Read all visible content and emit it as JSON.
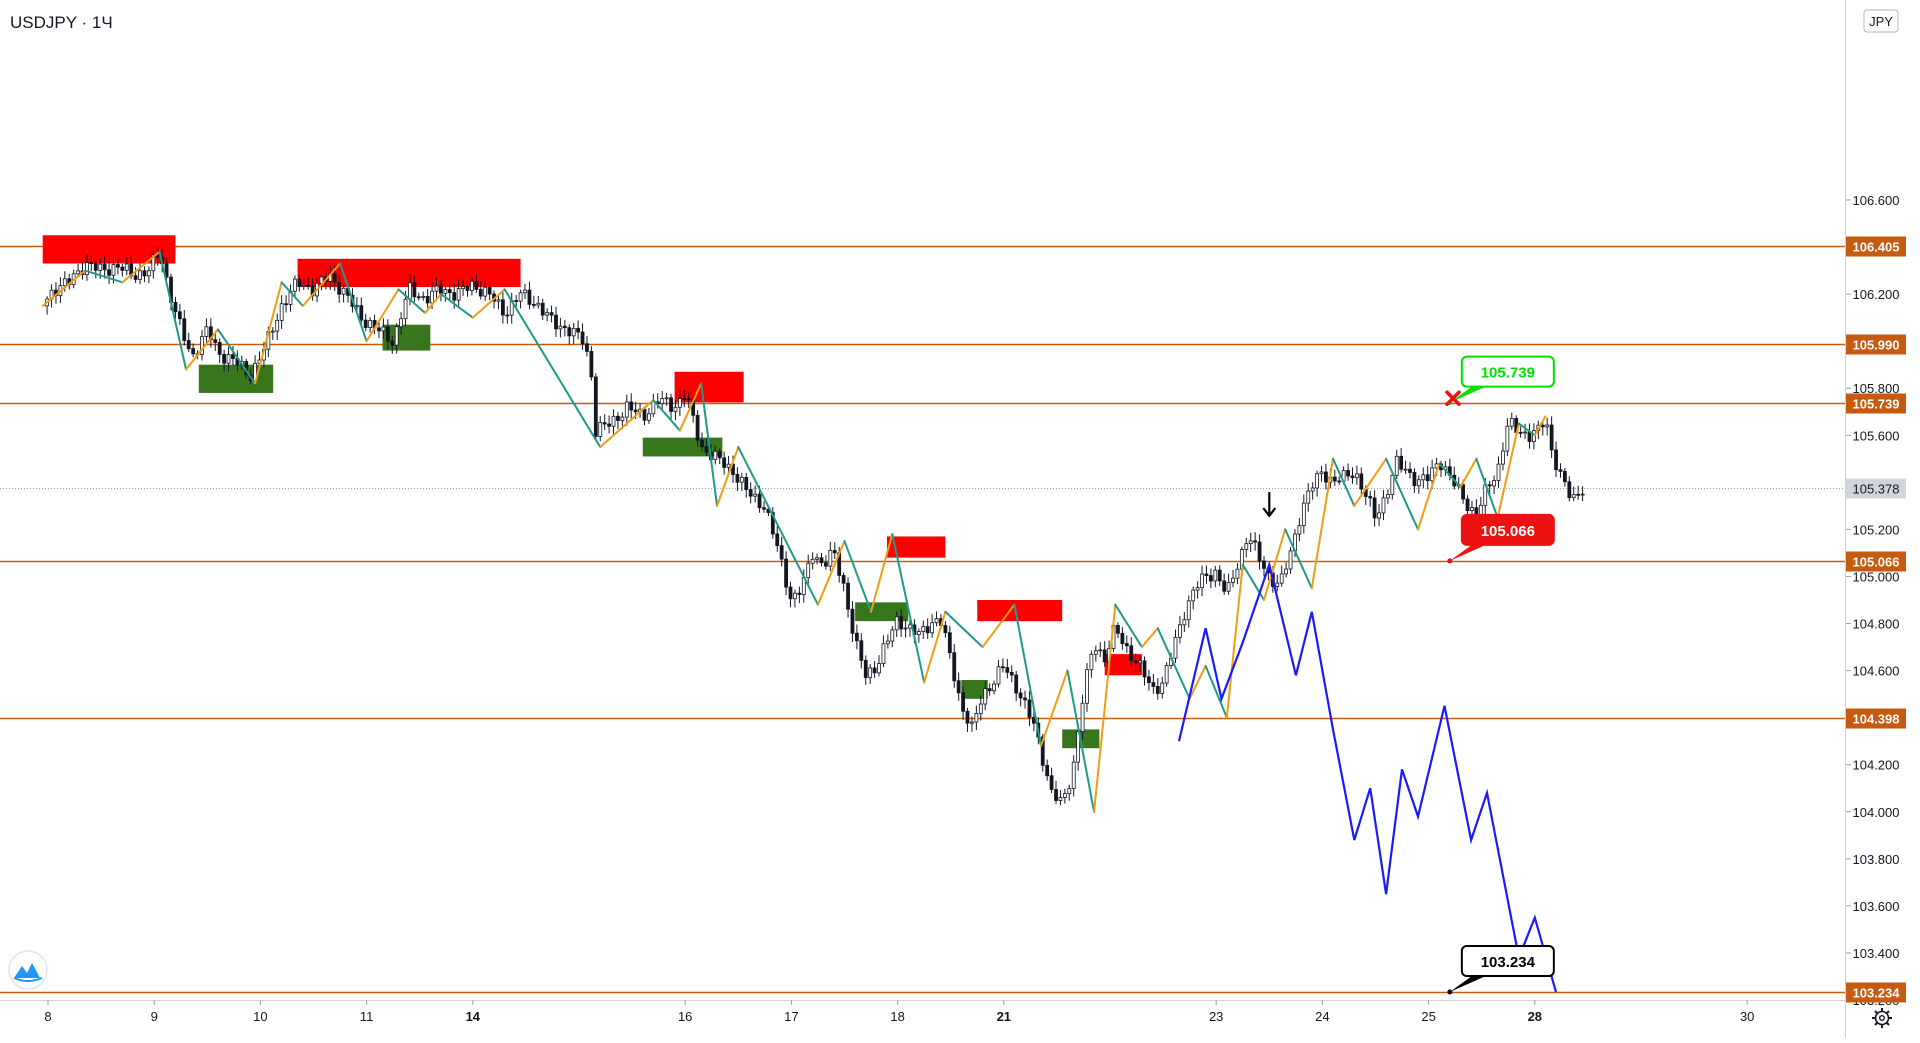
{
  "symbol_title": "USDJPY · 1Ч",
  "currency_label": "JPY",
  "colors": {
    "level_line": "#c55a11",
    "supply_zone": "#ff0000",
    "demand_zone": "#38761d",
    "zigzag_up": "#f39c12",
    "zigzag_down": "#1e9a8a",
    "projection": "#1a1aff",
    "candle": "#131722",
    "target_green": "#00e000",
    "target_red": "#ee1111",
    "target_black": "#000000"
  },
  "chart_data": {
    "type": "candlestick",
    "ylim": [
      103.2,
      106.6
    ],
    "y_ticks": [
      "106.600",
      "106.200",
      "105.800",
      "105.600",
      "105.200",
      "105.000",
      "104.800",
      "104.600",
      "104.200",
      "104.000",
      "103.800",
      "103.600",
      "103.400",
      "103.200"
    ],
    "x_ticks": [
      {
        "label": "8",
        "day": 0,
        "bold": false
      },
      {
        "label": "9",
        "day": 1,
        "bold": false
      },
      {
        "label": "10",
        "day": 2,
        "bold": false
      },
      {
        "label": "11",
        "day": 3,
        "bold": false
      },
      {
        "label": "14",
        "day": 4,
        "bold": true
      },
      {
        "label": "16",
        "day": 6,
        "bold": false
      },
      {
        "label": "17",
        "day": 7,
        "bold": false
      },
      {
        "label": "18",
        "day": 8,
        "bold": false
      },
      {
        "label": "21",
        "day": 9,
        "bold": true
      },
      {
        "label": "23",
        "day": 11,
        "bold": false
      },
      {
        "label": "24",
        "day": 12,
        "bold": false
      },
      {
        "label": "25",
        "day": 13,
        "bold": false
      },
      {
        "label": "28",
        "day": 14,
        "bold": true
      },
      {
        "label": "30",
        "day": 16,
        "bold": false
      }
    ],
    "levels": [
      "106.405",
      "105.990",
      "105.739",
      "105.066",
      "104.398",
      "103.234"
    ],
    "last_price": "105.378",
    "price_path": [
      [
        -0.05,
        106.15
      ],
      [
        0.05,
        106.22
      ],
      [
        0.2,
        106.25
      ],
      [
        0.35,
        106.33
      ],
      [
        0.5,
        106.3
      ],
      [
        0.65,
        106.32
      ],
      [
        0.8,
        106.28
      ],
      [
        0.95,
        106.3
      ],
      [
        1.05,
        106.38
      ],
      [
        1.2,
        106.12
      ],
      [
        1.35,
        105.93
      ],
      [
        1.5,
        106.05
      ],
      [
        1.6,
        105.95
      ],
      [
        1.75,
        105.92
      ],
      [
        1.9,
        105.85
      ],
      [
        2.05,
        105.98
      ],
      [
        2.2,
        106.15
      ],
      [
        2.35,
        106.25
      ],
      [
        2.5,
        106.22
      ],
      [
        2.65,
        106.28
      ],
      [
        2.8,
        106.2
      ],
      [
        2.95,
        106.1
      ],
      [
        3.1,
        106.05
      ],
      [
        3.25,
        106.0
      ],
      [
        3.4,
        106.22
      ],
      [
        3.55,
        106.18
      ],
      [
        3.7,
        106.22
      ],
      [
        3.85,
        106.2
      ],
      [
        4.0,
        106.24
      ],
      [
        4.15,
        106.2
      ],
      [
        4.3,
        106.12
      ],
      [
        4.45,
        106.2
      ],
      [
        4.6,
        106.16
      ],
      [
        4.75,
        106.08
      ],
      [
        4.9,
        106.05
      ],
      [
        5.05,
        106.0
      ],
      [
        5.12,
        105.85
      ],
      [
        5.15,
        105.62
      ],
      [
        5.3,
        105.65
      ],
      [
        5.45,
        105.72
      ],
      [
        5.6,
        105.68
      ],
      [
        5.75,
        105.75
      ],
      [
        5.9,
        105.72
      ],
      [
        6.0,
        105.78
      ],
      [
        6.15,
        105.55
      ],
      [
        6.3,
        105.5
      ],
      [
        6.45,
        105.45
      ],
      [
        6.6,
        105.35
      ],
      [
        6.75,
        105.3
      ],
      [
        6.85,
        105.15
      ],
      [
        7.0,
        104.9
      ],
      [
        7.1,
        104.95
      ],
      [
        7.2,
        105.1
      ],
      [
        7.3,
        105.05
      ],
      [
        7.4,
        105.1
      ],
      [
        7.5,
        104.95
      ],
      [
        7.6,
        104.72
      ],
      [
        7.7,
        104.58
      ],
      [
        7.8,
        104.62
      ],
      [
        7.9,
        104.72
      ],
      [
        8.0,
        104.82
      ],
      [
        8.1,
        104.78
      ],
      [
        8.2,
        104.75
      ],
      [
        8.3,
        104.8
      ],
      [
        8.4,
        104.82
      ],
      [
        8.5,
        104.65
      ],
      [
        8.6,
        104.45
      ],
      [
        8.7,
        104.35
      ],
      [
        8.8,
        104.5
      ],
      [
        8.9,
        104.55
      ],
      [
        9.0,
        104.62
      ],
      [
        9.1,
        104.55
      ],
      [
        9.2,
        104.45
      ],
      [
        9.3,
        104.35
      ],
      [
        9.45,
        104.08
      ],
      [
        9.55,
        104.03
      ],
      [
        9.65,
        104.18
      ],
      [
        9.75,
        104.5
      ],
      [
        9.85,
        104.72
      ],
      [
        9.95,
        104.65
      ],
      [
        10.05,
        104.78
      ],
      [
        10.15,
        104.7
      ],
      [
        10.3,
        104.6
      ],
      [
        10.4,
        104.52
      ],
      [
        10.5,
        104.55
      ],
      [
        10.6,
        104.7
      ],
      [
        10.7,
        104.85
      ],
      [
        10.8,
        104.95
      ],
      [
        10.9,
        105.0
      ],
      [
        11.0,
        105.02
      ],
      [
        11.1,
        104.92
      ],
      [
        11.2,
        105.05
      ],
      [
        11.3,
        105.18
      ],
      [
        11.4,
        105.08
      ],
      [
        11.5,
        105.0
      ],
      [
        11.6,
        104.96
      ],
      [
        11.7,
        105.1
      ],
      [
        11.8,
        105.28
      ],
      [
        11.9,
        105.38
      ],
      [
        12.0,
        105.45
      ],
      [
        12.1,
        105.4
      ],
      [
        12.2,
        105.42
      ],
      [
        12.3,
        105.45
      ],
      [
        12.4,
        105.35
      ],
      [
        12.5,
        105.25
      ],
      [
        12.6,
        105.35
      ],
      [
        12.7,
        105.48
      ],
      [
        12.8,
        105.45
      ],
      [
        12.9,
        105.4
      ],
      [
        13.0,
        105.42
      ],
      [
        13.1,
        105.5
      ],
      [
        13.2,
        105.42
      ],
      [
        13.35,
        105.32
      ],
      [
        13.45,
        105.25
      ],
      [
        13.55,
        105.38
      ],
      [
        13.65,
        105.45
      ],
      [
        13.75,
        105.65
      ],
      [
        13.85,
        105.62
      ],
      [
        13.95,
        105.6
      ],
      [
        14.05,
        105.62
      ],
      [
        14.1,
        105.68
      ],
      [
        14.15,
        105.55
      ],
      [
        14.25,
        105.42
      ],
      [
        14.35,
        105.32
      ],
      [
        14.45,
        105.38
      ]
    ],
    "zigzag": [
      [
        -0.05,
        106.15
      ],
      [
        0.35,
        106.3
      ],
      [
        0.7,
        106.25
      ],
      [
        1.05,
        106.38
      ],
      [
        1.3,
        105.88
      ],
      [
        1.6,
        106.05
      ],
      [
        1.95,
        105.82
      ],
      [
        2.2,
        106.25
      ],
      [
        2.4,
        106.15
      ],
      [
        2.75,
        106.33
      ],
      [
        3.0,
        106.0
      ],
      [
        3.3,
        106.22
      ],
      [
        3.55,
        106.12
      ],
      [
        3.7,
        106.2
      ],
      [
        4.0,
        106.1
      ],
      [
        4.3,
        106.22
      ],
      [
        5.2,
        105.55
      ],
      [
        5.7,
        105.75
      ],
      [
        5.95,
        105.62
      ],
      [
        6.15,
        105.82
      ],
      [
        6.3,
        105.3
      ],
      [
        6.5,
        105.55
      ],
      [
        7.25,
        104.88
      ],
      [
        7.5,
        105.15
      ],
      [
        7.75,
        104.85
      ],
      [
        7.95,
        105.18
      ],
      [
        8.25,
        104.55
      ],
      [
        8.45,
        104.85
      ],
      [
        8.8,
        104.7
      ],
      [
        9.1,
        104.88
      ],
      [
        9.35,
        104.28
      ],
      [
        9.6,
        104.6
      ],
      [
        9.85,
        104.0
      ],
      [
        10.05,
        104.88
      ],
      [
        10.3,
        104.7
      ],
      [
        10.45,
        104.78
      ],
      [
        10.75,
        104.48
      ],
      [
        10.9,
        104.62
      ],
      [
        11.1,
        104.4
      ],
      [
        11.25,
        105.05
      ],
      [
        11.45,
        104.9
      ],
      [
        11.65,
        105.2
      ],
      [
        11.9,
        104.95
      ],
      [
        12.1,
        105.5
      ],
      [
        12.3,
        105.3
      ],
      [
        12.6,
        105.5
      ],
      [
        12.9,
        105.2
      ],
      [
        13.1,
        105.48
      ],
      [
        13.3,
        105.38
      ],
      [
        13.45,
        105.5
      ],
      [
        13.65,
        105.25
      ],
      [
        13.85,
        105.65
      ],
      [
        14.0,
        105.6
      ],
      [
        14.1,
        105.68
      ]
    ],
    "projection": [
      [
        10.65,
        104.3
      ],
      [
        10.9,
        104.78
      ],
      [
        11.05,
        104.48
      ],
      [
        11.25,
        104.72
      ],
      [
        11.5,
        105.05
      ],
      [
        11.75,
        104.58
      ],
      [
        11.9,
        104.85
      ],
      [
        12.1,
        104.35
      ],
      [
        12.3,
        103.88
      ],
      [
        12.45,
        104.1
      ],
      [
        12.6,
        103.65
      ],
      [
        12.75,
        104.18
      ],
      [
        12.9,
        103.98
      ],
      [
        13.15,
        104.45
      ],
      [
        13.4,
        103.88
      ],
      [
        13.55,
        104.08
      ],
      [
        13.85,
        103.38
      ],
      [
        14.0,
        103.55
      ],
      [
        14.2,
        103.234
      ]
    ],
    "zones": [
      {
        "type": "supply",
        "x0": -0.05,
        "x1": 1.2,
        "y0": 106.33,
        "y1": 106.45
      },
      {
        "type": "supply",
        "x0": 2.35,
        "x1": 4.45,
        "y0": 106.23,
        "y1": 106.35
      },
      {
        "type": "demand",
        "x0": 1.42,
        "x1": 2.12,
        "y0": 105.78,
        "y1": 105.9
      },
      {
        "type": "demand",
        "x0": 3.15,
        "x1": 3.6,
        "y0": 105.96,
        "y1": 106.07
      },
      {
        "type": "supply",
        "x0": 5.9,
        "x1": 6.55,
        "y0": 105.74,
        "y1": 105.87
      },
      {
        "type": "demand",
        "x0": 5.6,
        "x1": 6.35,
        "y0": 105.51,
        "y1": 105.59
      },
      {
        "type": "supply",
        "x0": 7.9,
        "x1": 8.45,
        "y0": 105.08,
        "y1": 105.17
      },
      {
        "type": "demand",
        "x0": 7.6,
        "x1": 8.1,
        "y0": 104.81,
        "y1": 104.89
      },
      {
        "type": "supply",
        "x0": 8.75,
        "x1": 9.55,
        "y0": 104.81,
        "y1": 104.9
      },
      {
        "type": "demand",
        "x0": 8.6,
        "x1": 8.85,
        "y0": 104.48,
        "y1": 104.56
      },
      {
        "type": "supply",
        "x0": 9.95,
        "x1": 10.3,
        "y0": 104.58,
        "y1": 104.67
      },
      {
        "type": "demand",
        "x0": 9.55,
        "x1": 9.9,
        "y0": 104.27,
        "y1": 104.35
      }
    ],
    "annotations": {
      "green_target": {
        "label": "105.739",
        "day": 13.2,
        "price": 105.739
      },
      "red_target": {
        "label": "105.066",
        "day": 13.2,
        "price": 105.066
      },
      "black_target": {
        "label": "103.234",
        "day": 13.2,
        "price": 103.234
      },
      "cross_mark": {
        "day": 13.23,
        "price": 105.8
      },
      "arrow_down": {
        "day": 11.5,
        "price": 105.24
      }
    }
  }
}
